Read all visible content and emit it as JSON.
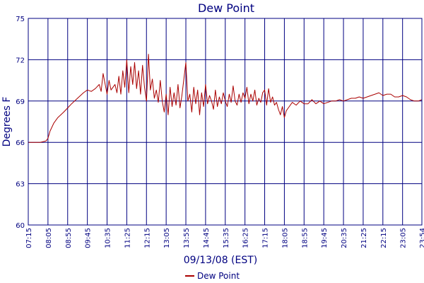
{
  "chart_data": {
    "type": "line",
    "title": "Dew Point",
    "xlabel": "09/13/08 (EST)",
    "ylabel": "Degrees F",
    "ylim": [
      60,
      75
    ],
    "y_ticks": [
      "60",
      "63",
      "66",
      "69",
      "72",
      "75"
    ],
    "x_ticks": [
      "07:15",
      "08:05",
      "08:55",
      "09:45",
      "10:35",
      "11:25",
      "12:15",
      "13:05",
      "13:55",
      "14:45",
      "15:35",
      "16:25",
      "17:15",
      "18:05",
      "18:55",
      "19:45",
      "20:35",
      "21:25",
      "22:15",
      "23:05",
      "23:54"
    ],
    "grid": true,
    "legend": "bottom-center",
    "colors": {
      "series": "#aa0000",
      "axes": "#000080",
      "grid": "#000080"
    },
    "series": [
      {
        "name": "Dew Point",
        "x": [
          "07:15",
          "07:30",
          "07:45",
          "08:00",
          "08:05",
          "08:10",
          "08:20",
          "08:30",
          "08:45",
          "08:55",
          "09:05",
          "09:20",
          "09:35",
          "09:45",
          "09:55",
          "10:05",
          "10:15",
          "10:20",
          "10:25",
          "10:35",
          "10:40",
          "10:45",
          "10:55",
          "11:00",
          "11:05",
          "11:10",
          "11:15",
          "11:20",
          "11:25",
          "11:30",
          "11:35",
          "11:40",
          "11:45",
          "11:50",
          "11:55",
          "12:00",
          "12:05",
          "12:10",
          "12:15",
          "12:20",
          "12:25",
          "12:30",
          "12:35",
          "12:40",
          "12:45",
          "12:50",
          "12:55",
          "13:00",
          "13:05",
          "13:10",
          "13:15",
          "13:20",
          "13:25",
          "13:30",
          "13:35",
          "13:40",
          "13:45",
          "13:50",
          "13:55",
          "14:00",
          "14:05",
          "14:10",
          "14:15",
          "14:20",
          "14:25",
          "14:30",
          "14:35",
          "14:40",
          "14:45",
          "14:50",
          "14:55",
          "15:00",
          "15:05",
          "15:10",
          "15:15",
          "15:20",
          "15:25",
          "15:30",
          "15:35",
          "15:40",
          "15:45",
          "15:50",
          "15:55",
          "16:00",
          "16:05",
          "16:10",
          "16:15",
          "16:20",
          "16:25",
          "16:30",
          "16:35",
          "16:40",
          "16:45",
          "16:50",
          "16:55",
          "17:00",
          "17:05",
          "17:10",
          "17:15",
          "17:20",
          "17:25",
          "17:30",
          "17:35",
          "17:40",
          "17:45",
          "17:50",
          "17:55",
          "18:00",
          "18:05",
          "18:10",
          "18:15",
          "18:25",
          "18:35",
          "18:45",
          "18:55",
          "19:05",
          "19:15",
          "19:25",
          "19:35",
          "19:45",
          "19:55",
          "20:05",
          "20:15",
          "20:25",
          "20:35",
          "20:45",
          "20:55",
          "21:05",
          "21:15",
          "21:25",
          "21:35",
          "21:45",
          "21:55",
          "22:05",
          "22:15",
          "22:25",
          "22:35",
          "22:45",
          "22:55",
          "23:05",
          "23:15",
          "23:25",
          "23:35",
          "23:45",
          "23:54"
        ],
        "values": [
          66.0,
          66.0,
          66.0,
          66.1,
          66.3,
          66.8,
          67.4,
          67.8,
          68.2,
          68.5,
          68.8,
          69.2,
          69.6,
          69.8,
          69.7,
          69.9,
          70.2,
          69.7,
          71.0,
          69.5,
          70.5,
          69.8,
          70.2,
          69.6,
          70.8,
          69.5,
          71.2,
          70.0,
          72.0,
          69.6,
          71.5,
          70.2,
          71.8,
          69.9,
          71.2,
          69.5,
          71.6,
          70.0,
          69.0,
          72.4,
          69.8,
          70.6,
          69.2,
          69.8,
          68.9,
          70.5,
          69.0,
          68.2,
          69.5,
          68.0,
          70.0,
          68.6,
          69.6,
          68.7,
          70.2,
          68.5,
          69.4,
          70.6,
          71.8,
          69.0,
          69.5,
          68.2,
          70.0,
          68.8,
          69.8,
          68.0,
          69.6,
          68.6,
          70.2,
          68.8,
          69.4,
          69.0,
          68.4,
          69.8,
          68.6,
          69.3,
          68.8,
          69.6,
          69.0,
          68.6,
          69.5,
          68.9,
          70.1,
          69.0,
          68.7,
          69.5,
          68.9,
          69.6,
          69.2,
          70.0,
          68.8,
          69.5,
          69.0,
          69.8,
          68.7,
          69.2,
          68.9,
          69.6,
          69.8,
          68.7,
          69.9,
          68.9,
          69.3,
          68.7,
          68.9,
          68.4,
          68.0,
          68.6,
          67.8,
          68.3,
          68.5,
          68.9,
          68.7,
          69.0,
          68.8,
          68.8,
          69.1,
          68.8,
          69.0,
          68.8,
          68.9,
          69.0,
          69.0,
          69.1,
          69.0,
          69.1,
          69.2,
          69.2,
          69.3,
          69.2,
          69.3,
          69.4,
          69.5,
          69.6,
          69.4,
          69.5,
          69.5,
          69.3,
          69.3,
          69.4,
          69.3,
          69.1,
          69.0,
          69.0,
          69.1
        ]
      }
    ]
  }
}
